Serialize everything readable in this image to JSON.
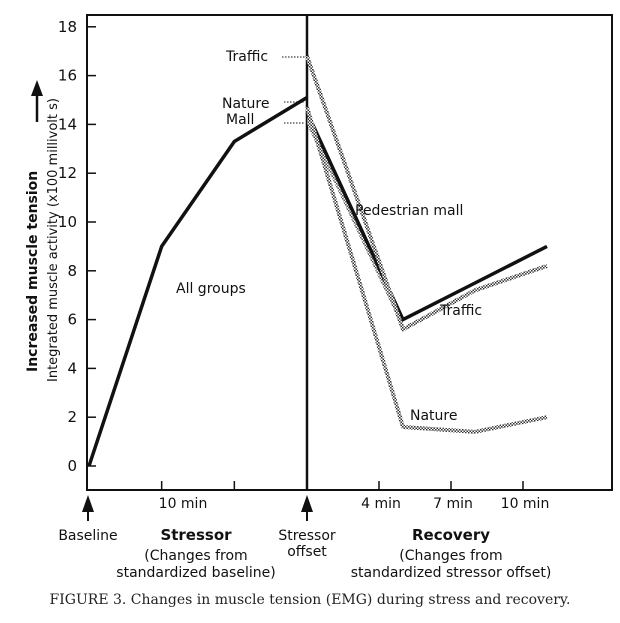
{
  "chart_data": {
    "type": "line",
    "x": [
      "Baseline",
      "10 min",
      "Stressor offset",
      "4 min",
      "7 min",
      "10 min"
    ],
    "y_range": [
      0,
      18
    ],
    "y_ticks": [
      "0",
      "2",
      "4",
      "6",
      "8",
      "10",
      "12",
      "14",
      "16",
      "18"
    ],
    "y_label_main": "Increased muscle tension",
    "y_label_sub": "Integrated muscle activity (x100 millivolt s)",
    "stressor_points": [
      [
        0,
        0
      ],
      [
        5,
        9
      ],
      [
        10,
        13.3
      ],
      [
        15,
        15.1
      ]
    ],
    "series": [
      {
        "name": "Pedestrian mall",
        "offset_value": 14.5,
        "points": [
          [
            4,
            6.0
          ],
          [
            7,
            7.5
          ],
          [
            10,
            9.0
          ]
        ],
        "style": "solid"
      },
      {
        "name": "Traffic",
        "offset_value": 16.8,
        "points": [
          [
            4,
            5.6
          ],
          [
            7,
            7.2
          ],
          [
            10,
            8.2
          ]
        ],
        "style": "dotted"
      },
      {
        "name": "Nature",
        "offset_value": 14.7,
        "points": [
          [
            4,
            1.6
          ],
          [
            7,
            1.4
          ],
          [
            10,
            2.0
          ]
        ],
        "style": "dotted"
      }
    ],
    "annotations": {
      "all_groups": "All groups",
      "traffic": "Traffic",
      "nature": "Nature",
      "mall": "Mall",
      "pedestrian_mall": "Pedestrian mall",
      "traffic_rec": "Traffic",
      "nature_rec": "Nature"
    },
    "x_labels": {
      "baseline": "Baseline",
      "stressor": "Stressor",
      "stressor_sub1": "(Changes from",
      "stressor_sub2": "standardized baseline)",
      "ten_min": "10 min",
      "offset1": "Stressor",
      "offset2": "offset",
      "recovery": "Recovery",
      "recovery_sub1": "(Changes from",
      "recovery_sub2": "standardized stressor offset)",
      "r4": "4 min",
      "r7": "7 min",
      "r10": "10 min"
    },
    "grid": false
  },
  "caption": "FIGURE 3. Changes in muscle tension (EMG) during stress and recovery."
}
